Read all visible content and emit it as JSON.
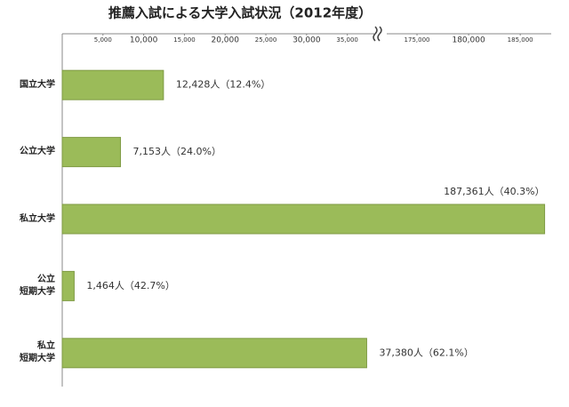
{
  "chart_data": {
    "type": "bar",
    "orientation": "horizontal",
    "title": "推薦入試による大学入試状況（2012年度）",
    "categories": [
      "国立大学",
      "公立大学",
      "私立大学",
      "公立\n短期大学",
      "私立\n短期大学"
    ],
    "values": [
      12428,
      7153,
      187361,
      1464,
      37380
    ],
    "value_labels": [
      "12,428人（12.4%）",
      "7,153人（24.0%）",
      "187,361人（40.3%）",
      "1,464人（42.7%）",
      "37,380人（62.1%）"
    ],
    "color": "#9bbb59",
    "xlim": [
      0,
      188000
    ],
    "xticks": [
      {
        "value": 5000,
        "label": "5,000"
      },
      {
        "value": 10000,
        "label": "10,000"
      },
      {
        "value": 15000,
        "label": "15,000"
      },
      {
        "value": 20000,
        "label": "20,000"
      },
      {
        "value": 25000,
        "label": "25,000"
      },
      {
        "value": 30000,
        "label": "30,000"
      },
      {
        "value": 35000,
        "label": "35,000"
      },
      {
        "value": 175000,
        "label": "175,000"
      },
      {
        "value": 180000,
        "label": "180,000"
      },
      {
        "value": 185000,
        "label": "185,000"
      }
    ],
    "axis_break": true
  }
}
